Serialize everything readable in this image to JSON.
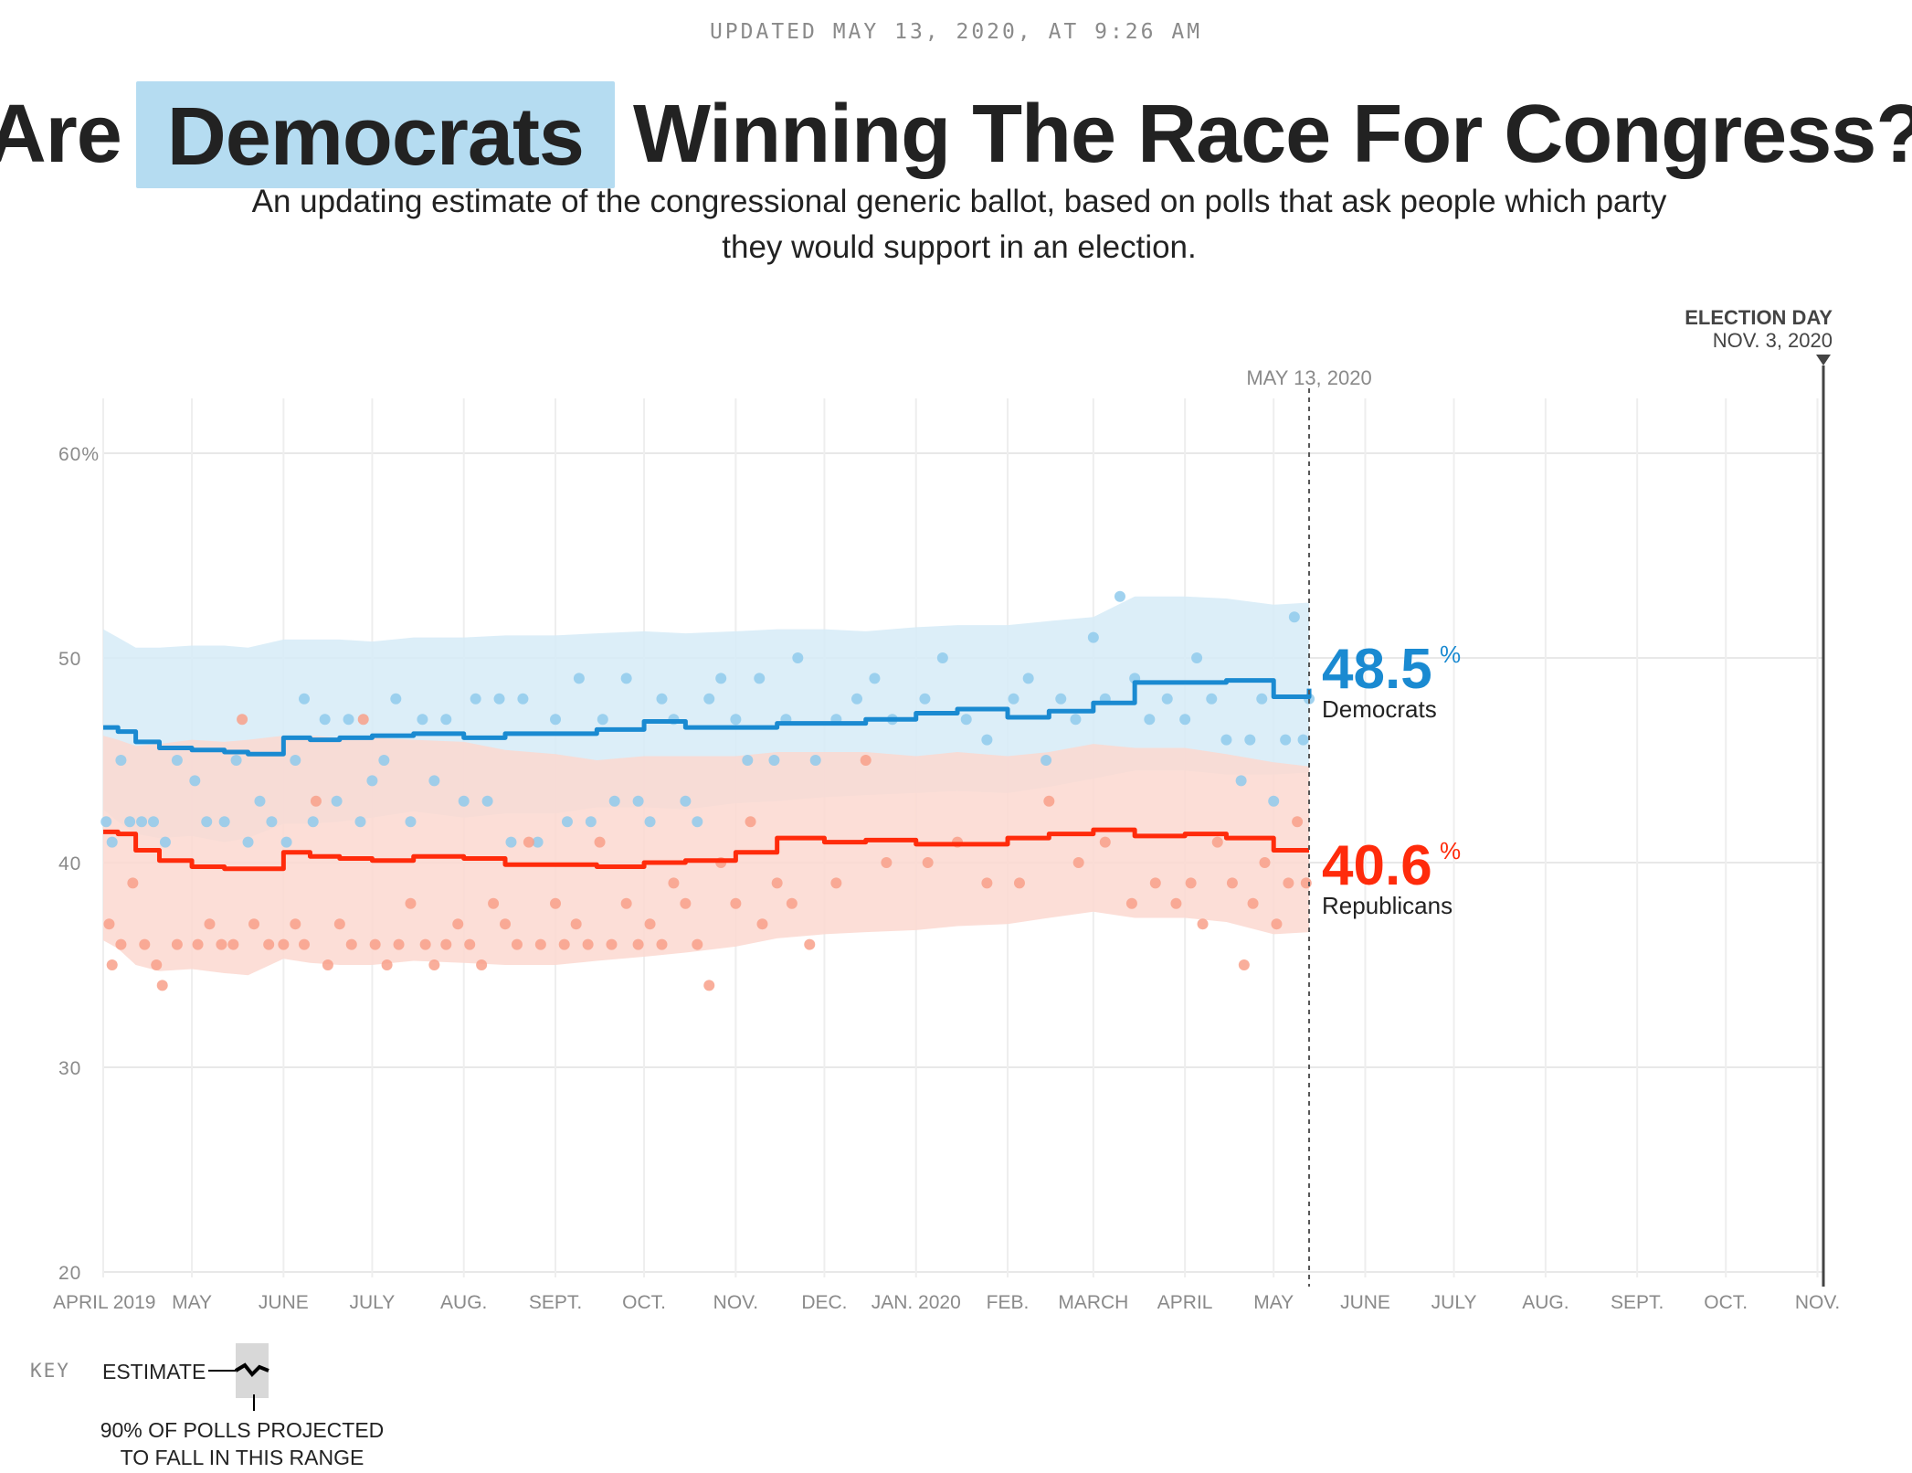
{
  "header": {
    "updated": "UPDATED MAY 13, 2020, AT 9:26 AM",
    "title_before": "Are",
    "title_party": "Democrats",
    "title_after": "Winning The Race For Congress?",
    "dek": "An updating estimate of the congressional generic ballot, based on polls that ask people which party they would support in an election."
  },
  "chart_data": {
    "type": "line",
    "title": "Are Democrats Winning The Race For Congress?",
    "xlabel": "",
    "ylabel": "",
    "x_range": [
      "2019-04-01",
      "2020-11-03"
    ],
    "ylim": [
      20,
      60
    ],
    "y_ticks": [
      {
        "value": 60,
        "label": "60%"
      },
      {
        "value": 50,
        "label": "50"
      },
      {
        "value": 40,
        "label": "40"
      },
      {
        "value": 30,
        "label": "30"
      },
      {
        "value": 20,
        "label": "20"
      }
    ],
    "x_ticks": [
      {
        "date": "2019-04-01",
        "label": "APRIL 2019"
      },
      {
        "date": "2019-05-01",
        "label": "MAY"
      },
      {
        "date": "2019-06-01",
        "label": "JUNE"
      },
      {
        "date": "2019-07-01",
        "label": "JULY"
      },
      {
        "date": "2019-08-01",
        "label": "AUG."
      },
      {
        "date": "2019-09-01",
        "label": "SEPT."
      },
      {
        "date": "2019-10-01",
        "label": "OCT."
      },
      {
        "date": "2019-11-01",
        "label": "NOV."
      },
      {
        "date": "2019-12-01",
        "label": "DEC."
      },
      {
        "date": "2020-01-01",
        "label": "JAN. 2020"
      },
      {
        "date": "2020-02-01",
        "label": "FEB."
      },
      {
        "date": "2020-03-01",
        "label": "MARCH"
      },
      {
        "date": "2020-04-01",
        "label": "APRIL"
      },
      {
        "date": "2020-05-01",
        "label": "MAY"
      },
      {
        "date": "2020-06-01",
        "label": "JUNE"
      },
      {
        "date": "2020-07-01",
        "label": "JULY"
      },
      {
        "date": "2020-08-01",
        "label": "AUG."
      },
      {
        "date": "2020-09-01",
        "label": "SEPT."
      },
      {
        "date": "2020-10-01",
        "label": "OCT."
      },
      {
        "date": "2020-11-01",
        "label": "NOV."
      }
    ],
    "grid": true,
    "today": {
      "date": "2020-05-13",
      "label": "MAY 13, 2020"
    },
    "election_day": {
      "date": "2020-11-03",
      "label": "ELECTION DAY",
      "sublabel": "NOV. 3, 2020"
    },
    "series": [
      {
        "name": "Democrats",
        "color": "#1a8ad1",
        "band_color": "#d6ebf7",
        "dot_color": "#8fcaec",
        "current_value": "48.5",
        "dates": [
          "2019-04-01",
          "2019-04-06",
          "2019-04-12",
          "2019-04-20",
          "2019-05-01",
          "2019-05-12",
          "2019-05-20",
          "2019-06-01",
          "2019-06-10",
          "2019-06-20",
          "2019-07-01",
          "2019-07-15",
          "2019-08-01",
          "2019-08-15",
          "2019-09-01",
          "2019-09-15",
          "2019-10-01",
          "2019-10-15",
          "2019-11-01",
          "2019-11-15",
          "2019-12-01",
          "2019-12-15",
          "2020-01-01",
          "2020-01-15",
          "2020-02-01",
          "2020-02-15",
          "2020-03-01",
          "2020-03-15",
          "2020-04-01",
          "2020-04-15",
          "2020-05-01",
          "2020-05-13"
        ],
        "estimate": [
          46.6,
          46.4,
          45.9,
          45.6,
          45.5,
          45.4,
          45.3,
          46.1,
          46.0,
          46.1,
          46.2,
          46.3,
          46.1,
          46.3,
          46.3,
          46.5,
          46.9,
          46.6,
          46.6,
          46.8,
          46.8,
          47.0,
          47.3,
          47.5,
          47.1,
          47.4,
          47.8,
          48.8,
          48.8,
          48.9,
          48.1,
          48.5
        ],
        "band_high": [
          51.4,
          51.0,
          50.5,
          50.5,
          50.6,
          50.6,
          50.5,
          50.9,
          50.9,
          50.9,
          50.8,
          51.0,
          51.0,
          51.1,
          51.1,
          51.2,
          51.3,
          51.2,
          51.3,
          51.4,
          51.4,
          51.3,
          51.5,
          51.6,
          51.6,
          51.8,
          52.0,
          53.0,
          53.0,
          52.9,
          52.6,
          52.7
        ],
        "band_low": [
          42.6,
          42.0,
          41.4,
          41.2,
          41.3,
          41.0,
          41.2,
          41.9,
          41.9,
          42.0,
          42.2,
          42.5,
          42.2,
          42.4,
          42.4,
          42.7,
          42.7,
          42.6,
          42.9,
          43.0,
          43.2,
          43.3,
          43.4,
          43.5,
          43.4,
          43.7,
          44.1,
          44.5,
          44.5,
          44.3,
          44.3,
          44.4
        ],
        "polls": [
          [
            "2019-04-02",
            42
          ],
          [
            "2019-04-04",
            41
          ],
          [
            "2019-04-07",
            45
          ],
          [
            "2019-04-10",
            42
          ],
          [
            "2019-04-14",
            42
          ],
          [
            "2019-04-18",
            42
          ],
          [
            "2019-04-22",
            41
          ],
          [
            "2019-04-26",
            45
          ],
          [
            "2019-05-02",
            44
          ],
          [
            "2019-05-06",
            42
          ],
          [
            "2019-05-12",
            42
          ],
          [
            "2019-05-16",
            45
          ],
          [
            "2019-05-20",
            41
          ],
          [
            "2019-05-24",
            43
          ],
          [
            "2019-05-28",
            42
          ],
          [
            "2019-06-02",
            41
          ],
          [
            "2019-06-05",
            45
          ],
          [
            "2019-06-08",
            48
          ],
          [
            "2019-06-11",
            42
          ],
          [
            "2019-06-15",
            47
          ],
          [
            "2019-06-19",
            43
          ],
          [
            "2019-06-23",
            47
          ],
          [
            "2019-06-27",
            42
          ],
          [
            "2019-07-01",
            44
          ],
          [
            "2019-07-05",
            45
          ],
          [
            "2019-07-09",
            48
          ],
          [
            "2019-07-14",
            42
          ],
          [
            "2019-07-18",
            47
          ],
          [
            "2019-07-22",
            44
          ],
          [
            "2019-07-26",
            47
          ],
          [
            "2019-08-01",
            43
          ],
          [
            "2019-08-05",
            48
          ],
          [
            "2019-08-09",
            43
          ],
          [
            "2019-08-13",
            48
          ],
          [
            "2019-08-17",
            41
          ],
          [
            "2019-08-21",
            48
          ],
          [
            "2019-08-26",
            41
          ],
          [
            "2019-09-01",
            47
          ],
          [
            "2019-09-05",
            42
          ],
          [
            "2019-09-09",
            49
          ],
          [
            "2019-09-13",
            42
          ],
          [
            "2019-09-17",
            47
          ],
          [
            "2019-09-21",
            43
          ],
          [
            "2019-09-25",
            49
          ],
          [
            "2019-09-29",
            43
          ],
          [
            "2019-10-03",
            42
          ],
          [
            "2019-10-07",
            48
          ],
          [
            "2019-10-11",
            47
          ],
          [
            "2019-10-15",
            43
          ],
          [
            "2019-10-19",
            42
          ],
          [
            "2019-10-23",
            48
          ],
          [
            "2019-10-27",
            49
          ],
          [
            "2019-11-01",
            47
          ],
          [
            "2019-11-05",
            45
          ],
          [
            "2019-11-09",
            49
          ],
          [
            "2019-11-14",
            45
          ],
          [
            "2019-11-18",
            47
          ],
          [
            "2019-11-22",
            50
          ],
          [
            "2019-11-28",
            45
          ],
          [
            "2019-12-05",
            47
          ],
          [
            "2019-12-12",
            48
          ],
          [
            "2019-12-18",
            49
          ],
          [
            "2019-12-24",
            47
          ],
          [
            "2020-01-04",
            48
          ],
          [
            "2020-01-10",
            50
          ],
          [
            "2020-01-18",
            47
          ],
          [
            "2020-01-25",
            46
          ],
          [
            "2020-02-03",
            48
          ],
          [
            "2020-02-08",
            49
          ],
          [
            "2020-02-14",
            45
          ],
          [
            "2020-02-19",
            48
          ],
          [
            "2020-02-24",
            47
          ],
          [
            "2020-03-01",
            51
          ],
          [
            "2020-03-05",
            48
          ],
          [
            "2020-03-10",
            53
          ],
          [
            "2020-03-15",
            49
          ],
          [
            "2020-03-20",
            47
          ],
          [
            "2020-03-26",
            48
          ],
          [
            "2020-04-01",
            47
          ],
          [
            "2020-04-05",
            50
          ],
          [
            "2020-04-10",
            48
          ],
          [
            "2020-04-15",
            46
          ],
          [
            "2020-04-20",
            44
          ],
          [
            "2020-04-23",
            46
          ],
          [
            "2020-04-27",
            48
          ],
          [
            "2020-05-01",
            43
          ],
          [
            "2020-05-05",
            46
          ],
          [
            "2020-05-08",
            52
          ],
          [
            "2020-05-11",
            46
          ],
          [
            "2020-05-13",
            48
          ]
        ]
      },
      {
        "name": "Republicans",
        "color": "#ff2b0b",
        "band_color": "#fcd8d0",
        "dot_color": "#f8a08a",
        "current_value": "40.6",
        "dates": [
          "2019-04-01",
          "2019-04-06",
          "2019-04-12",
          "2019-04-20",
          "2019-05-01",
          "2019-05-12",
          "2019-05-20",
          "2019-06-01",
          "2019-06-10",
          "2019-06-20",
          "2019-07-01",
          "2019-07-15",
          "2019-08-01",
          "2019-08-15",
          "2019-09-01",
          "2019-09-15",
          "2019-10-01",
          "2019-10-15",
          "2019-11-01",
          "2019-11-15",
          "2019-12-01",
          "2019-12-15",
          "2020-01-01",
          "2020-01-15",
          "2020-02-01",
          "2020-02-15",
          "2020-03-01",
          "2020-03-15",
          "2020-04-01",
          "2020-04-15",
          "2020-05-01",
          "2020-05-13"
        ],
        "estimate": [
          41.5,
          41.4,
          40.6,
          40.1,
          39.8,
          39.7,
          39.7,
          40.5,
          40.3,
          40.2,
          40.1,
          40.3,
          40.2,
          39.9,
          39.9,
          39.8,
          40.0,
          40.1,
          40.5,
          41.2,
          41.0,
          41.1,
          40.9,
          40.9,
          41.2,
          41.4,
          41.6,
          41.3,
          41.4,
          41.2,
          40.6,
          40.6
        ],
        "band_high": [
          46.2,
          46.0,
          45.7,
          45.8,
          46.0,
          45.9,
          46.0,
          46.2,
          46.2,
          46.1,
          46.1,
          46.0,
          45.9,
          45.5,
          45.3,
          45.0,
          45.2,
          45.2,
          45.2,
          45.4,
          45.4,
          45.4,
          45.2,
          45.4,
          45.2,
          45.4,
          45.8,
          45.6,
          45.6,
          45.3,
          44.9,
          44.7
        ],
        "band_low": [
          36.2,
          35.8,
          35.0,
          34.7,
          34.8,
          34.6,
          34.5,
          35.3,
          35.1,
          35.0,
          35.0,
          35.2,
          35.1,
          35.0,
          35.0,
          35.2,
          35.4,
          35.6,
          35.9,
          36.3,
          36.5,
          36.6,
          36.7,
          36.9,
          37.0,
          37.3,
          37.6,
          37.3,
          37.3,
          37.1,
          36.5,
          36.6
        ],
        "polls": [
          [
            "2019-04-03",
            37
          ],
          [
            "2019-04-04",
            35
          ],
          [
            "2019-04-07",
            36
          ],
          [
            "2019-04-11",
            39
          ],
          [
            "2019-04-15",
            36
          ],
          [
            "2019-04-19",
            35
          ],
          [
            "2019-04-21",
            34
          ],
          [
            "2019-04-26",
            36
          ],
          [
            "2019-05-03",
            36
          ],
          [
            "2019-05-07",
            37
          ],
          [
            "2019-05-11",
            36
          ],
          [
            "2019-05-15",
            36
          ],
          [
            "2019-05-18",
            47
          ],
          [
            "2019-05-22",
            37
          ],
          [
            "2019-05-27",
            36
          ],
          [
            "2019-06-01",
            36
          ],
          [
            "2019-06-05",
            37
          ],
          [
            "2019-06-08",
            36
          ],
          [
            "2019-06-12",
            43
          ],
          [
            "2019-06-16",
            35
          ],
          [
            "2019-06-20",
            37
          ],
          [
            "2019-06-24",
            36
          ],
          [
            "2019-06-28",
            47
          ],
          [
            "2019-07-02",
            36
          ],
          [
            "2019-07-06",
            35
          ],
          [
            "2019-07-10",
            36
          ],
          [
            "2019-07-14",
            38
          ],
          [
            "2019-07-19",
            36
          ],
          [
            "2019-07-22",
            35
          ],
          [
            "2019-07-26",
            36
          ],
          [
            "2019-07-30",
            37
          ],
          [
            "2019-08-03",
            36
          ],
          [
            "2019-08-07",
            35
          ],
          [
            "2019-08-11",
            38
          ],
          [
            "2019-08-15",
            37
          ],
          [
            "2019-08-19",
            36
          ],
          [
            "2019-08-23",
            41
          ],
          [
            "2019-08-27",
            36
          ],
          [
            "2019-09-01",
            38
          ],
          [
            "2019-09-04",
            36
          ],
          [
            "2019-09-08",
            37
          ],
          [
            "2019-09-12",
            36
          ],
          [
            "2019-09-16",
            41
          ],
          [
            "2019-09-20",
            36
          ],
          [
            "2019-09-25",
            38
          ],
          [
            "2019-09-29",
            36
          ],
          [
            "2019-10-03",
            37
          ],
          [
            "2019-10-07",
            36
          ],
          [
            "2019-10-11",
            39
          ],
          [
            "2019-10-15",
            38
          ],
          [
            "2019-10-19",
            36
          ],
          [
            "2019-10-23",
            34
          ],
          [
            "2019-10-27",
            40
          ],
          [
            "2019-11-01",
            38
          ],
          [
            "2019-11-06",
            42
          ],
          [
            "2019-11-10",
            37
          ],
          [
            "2019-11-15",
            39
          ],
          [
            "2019-11-20",
            38
          ],
          [
            "2019-11-26",
            36
          ],
          [
            "2019-12-05",
            39
          ],
          [
            "2019-12-15",
            45
          ],
          [
            "2019-12-22",
            40
          ],
          [
            "2020-01-05",
            40
          ],
          [
            "2020-01-15",
            41
          ],
          [
            "2020-01-25",
            39
          ],
          [
            "2020-02-05",
            39
          ],
          [
            "2020-02-15",
            43
          ],
          [
            "2020-02-25",
            40
          ],
          [
            "2020-03-05",
            41
          ],
          [
            "2020-03-14",
            38
          ],
          [
            "2020-03-22",
            39
          ],
          [
            "2020-03-29",
            38
          ],
          [
            "2020-04-03",
            39
          ],
          [
            "2020-04-07",
            37
          ],
          [
            "2020-04-12",
            41
          ],
          [
            "2020-04-17",
            39
          ],
          [
            "2020-04-21",
            35
          ],
          [
            "2020-04-24",
            38
          ],
          [
            "2020-04-28",
            40
          ],
          [
            "2020-05-02",
            37
          ],
          [
            "2020-05-06",
            39
          ],
          [
            "2020-05-09",
            42
          ],
          [
            "2020-05-12",
            39
          ]
        ]
      }
    ],
    "key": {
      "label": "KEY",
      "estimate": "ESTIMATE",
      "range": "90% of polls projected to fall in this range"
    }
  }
}
